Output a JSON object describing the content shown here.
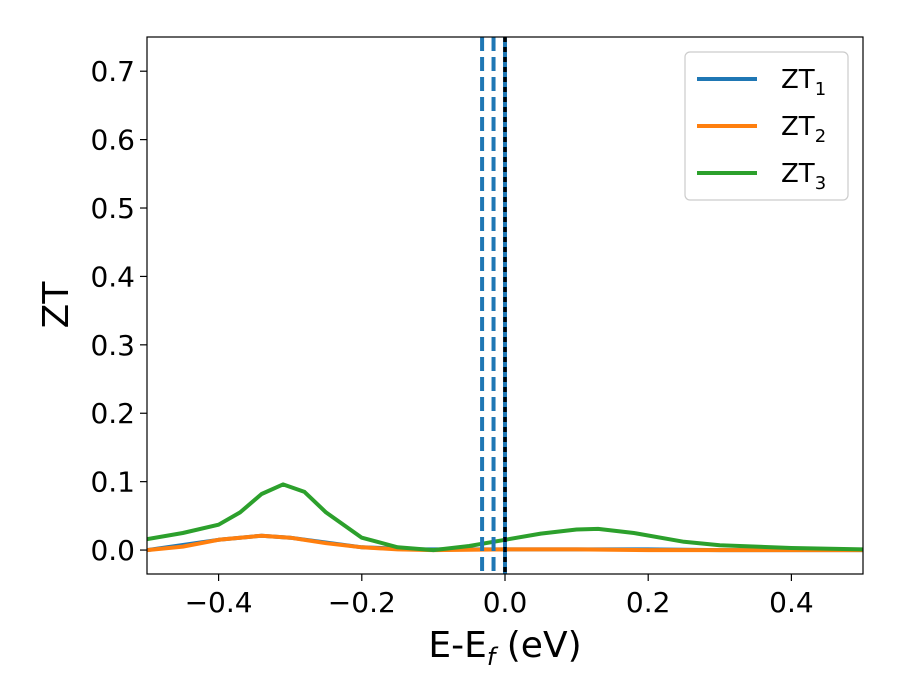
{
  "chart_data": {
    "type": "line",
    "xlabel": "E-E",
    "xlabel_sub": "f",
    "xlabel_unit": "(eV)",
    "ylabel": "ZT",
    "xlim": [
      -0.5,
      0.5
    ],
    "ylim": [
      -0.035,
      0.75
    ],
    "xticks": [
      -0.4,
      -0.2,
      0.0,
      0.2,
      0.4
    ],
    "xtick_labels": [
      "−0.4",
      "−0.2",
      "0.0",
      "0.2",
      "0.4"
    ],
    "yticks": [
      0.0,
      0.1,
      0.2,
      0.3,
      0.4,
      0.5,
      0.6,
      0.7
    ],
    "ytick_labels": [
      "0.0",
      "0.1",
      "0.2",
      "0.3",
      "0.4",
      "0.5",
      "0.6",
      "0.7"
    ],
    "grid": false,
    "legend_position": "top-right",
    "series": [
      {
        "name": "ZT",
        "name_sub": "1",
        "color": "#1f77b4",
        "x": [
          -0.5,
          -0.4,
          -0.34,
          -0.3,
          -0.2,
          -0.12,
          -0.06,
          0.0,
          0.1,
          0.2,
          0.3,
          0.4,
          0.5
        ],
        "y": [
          0.0,
          0.015,
          0.021,
          0.018,
          0.004,
          0.001,
          0.001,
          0.001,
          0.001,
          0.001,
          0.0,
          0.0,
          0.0
        ]
      },
      {
        "name": "ZT",
        "name_sub": "2",
        "color": "#ff7f0e",
        "x": [
          -0.5,
          -0.45,
          -0.4,
          -0.34,
          -0.3,
          -0.25,
          -0.2,
          -0.15,
          -0.1,
          0.0,
          0.1,
          0.2,
          0.3,
          0.4,
          0.5
        ],
        "y": [
          0.0,
          0.005,
          0.015,
          0.021,
          0.018,
          0.01,
          0.004,
          0.001,
          0.0,
          0.001,
          0.001,
          0.0,
          0.0,
          0.0,
          0.0
        ]
      },
      {
        "name": "ZT",
        "name_sub": "3",
        "color": "#2ca02c",
        "x": [
          -0.5,
          -0.45,
          -0.4,
          -0.37,
          -0.34,
          -0.31,
          -0.28,
          -0.25,
          -0.2,
          -0.15,
          -0.1,
          -0.05,
          0.0,
          0.05,
          0.1,
          0.13,
          0.18,
          0.25,
          0.3,
          0.4,
          0.5
        ],
        "y": [
          0.016,
          0.025,
          0.037,
          0.055,
          0.082,
          0.096,
          0.085,
          0.055,
          0.018,
          0.004,
          0.0,
          0.006,
          0.015,
          0.024,
          0.03,
          0.031,
          0.025,
          0.012,
          0.007,
          0.003,
          0.001
        ]
      }
    ],
    "vlines": [
      {
        "x": -0.032,
        "color": "#1f77b4",
        "style": "dashed"
      },
      {
        "x": -0.016,
        "color": "#1f77b4",
        "style": "dashed"
      },
      {
        "x": 0.0,
        "color": "#1f77b4",
        "style": "solid"
      },
      {
        "x": 0.0,
        "color": "#000000",
        "style": "dotted"
      }
    ]
  }
}
